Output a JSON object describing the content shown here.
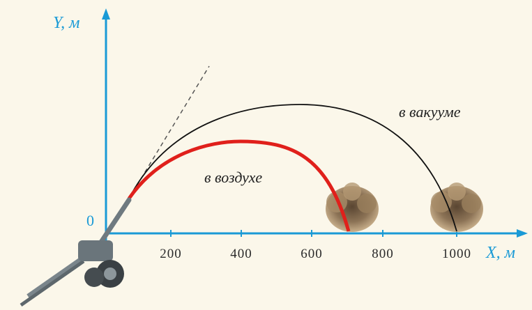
{
  "axes": {
    "y_label": "Y, м",
    "x_label": "X, м",
    "origin": "0",
    "x_ticks": [
      "200",
      "400",
      "600",
      "800",
      "1000"
    ]
  },
  "curves": {
    "vacuum": "в вакууме",
    "air": "в воздухе"
  }
}
